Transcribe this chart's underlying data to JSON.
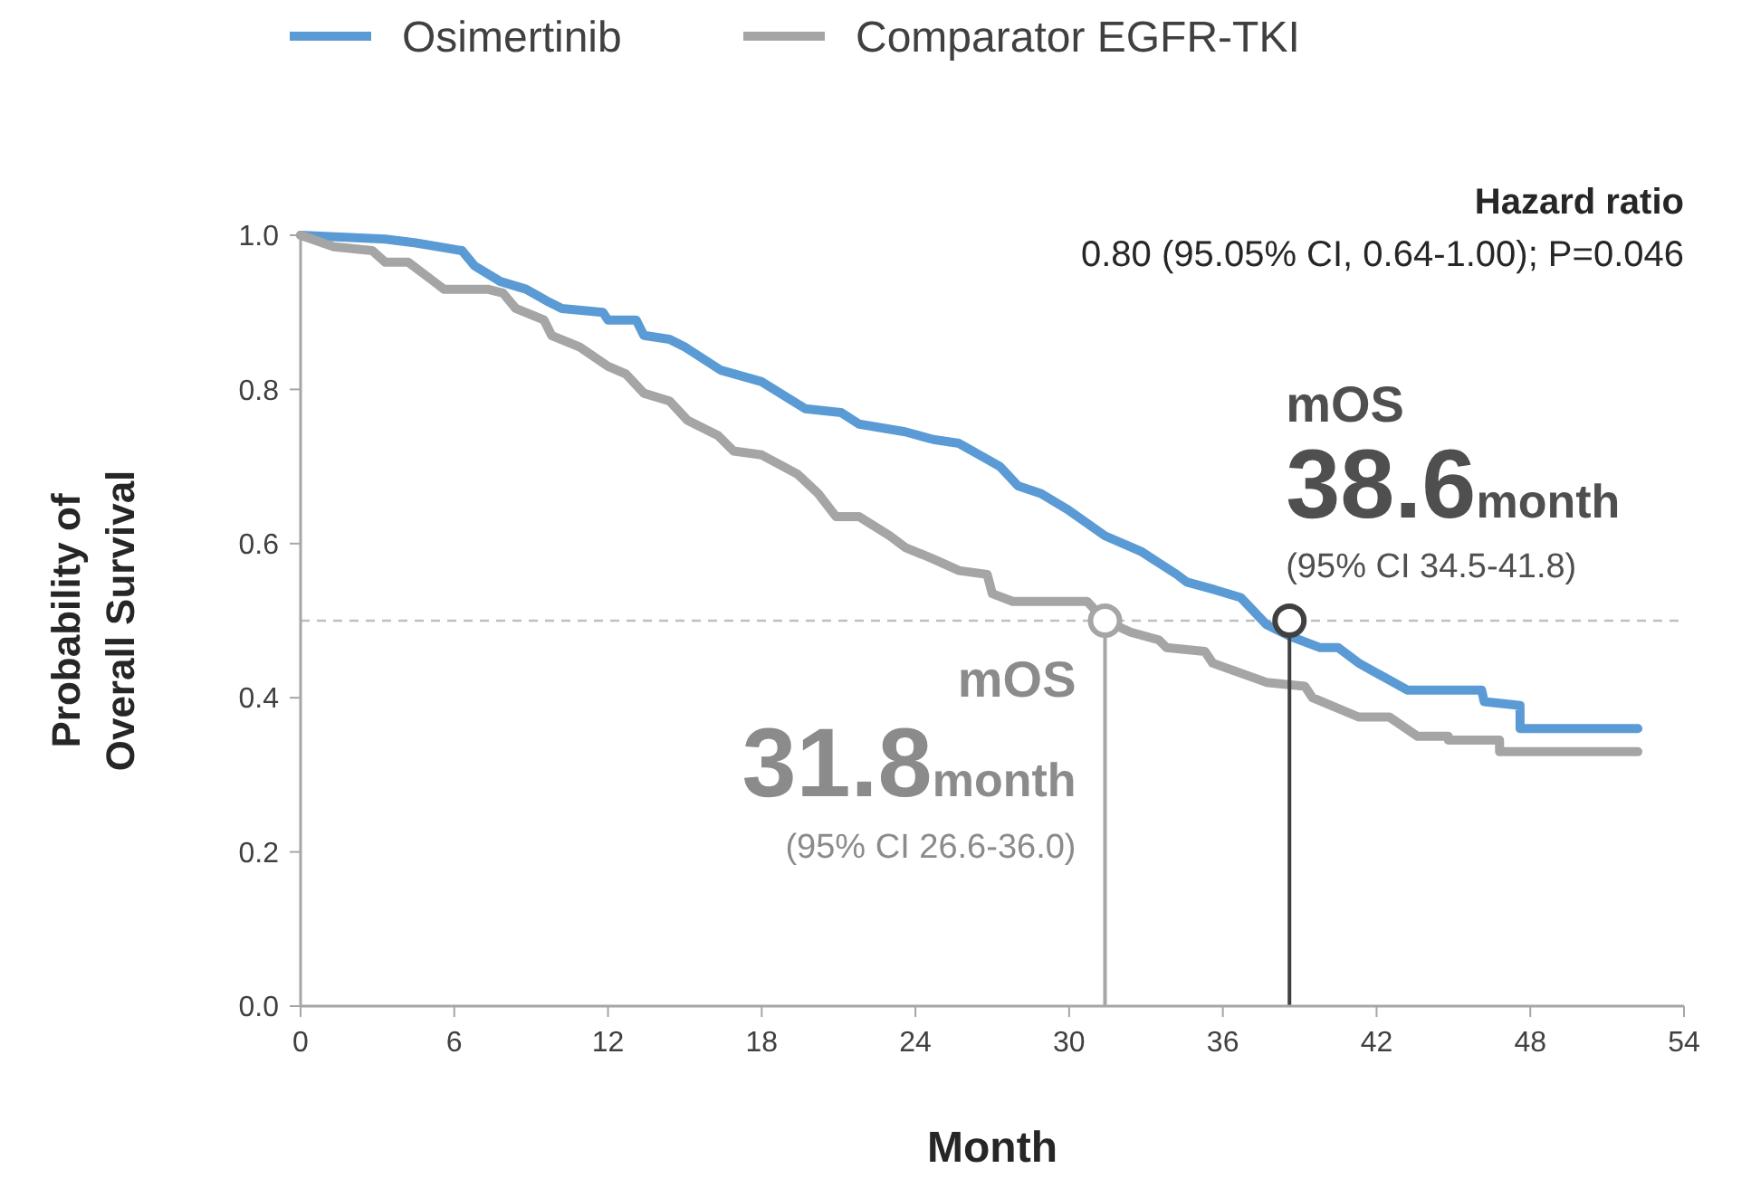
{
  "chart_data": {
    "type": "line",
    "xlabel": "Month",
    "ylabel": "Probability of\nOverall Survival",
    "legend": "top left",
    "xlim": [
      0,
      54
    ],
    "xticks": [
      0,
      6,
      12,
      18,
      24,
      30,
      36,
      42,
      48,
      54
    ],
    "ylim": [
      0,
      1
    ],
    "yticks": [
      {
        "value": 0,
        "label": "0.0"
      },
      {
        "value": 0.2,
        "label": "0.2"
      },
      {
        "value": 0.4,
        "label": "0.4"
      },
      {
        "value": 0.6,
        "label": "0.6"
      },
      {
        "value": 0.8,
        "label": "0.8"
      },
      {
        "value": 1,
        "label": "1.0"
      }
    ],
    "grid": false,
    "marker": "none",
    "line_style": "solid",
    "series": [
      {
        "name": "Osimertinib",
        "color": "#5b9bd5",
        "x": [
          0,
          3.3,
          4.5,
          6.3,
          6.8,
          7.8,
          8.8,
          9.6,
          10.2,
          11.8,
          12,
          13.1,
          13.4,
          14.4,
          15,
          16.4,
          18,
          19.7,
          21.1,
          21.8,
          23.6,
          24.7,
          25.7,
          27.3,
          28,
          28.9,
          29.9,
          31.4,
          32.8,
          33.5,
          34.2,
          34.6,
          35.7,
          36.7,
          37.7,
          38.6,
          39.8,
          40.5,
          41.3,
          43.2,
          46.1,
          46.2,
          47.6,
          47.6,
          52.2
        ],
        "values": [
          1,
          0.995,
          0.99,
          0.98,
          0.96,
          0.94,
          0.93,
          0.915,
          0.905,
          0.9,
          0.89,
          0.89,
          0.87,
          0.865,
          0.855,
          0.825,
          0.81,
          0.775,
          0.77,
          0.755,
          0.745,
          0.735,
          0.73,
          0.7,
          0.675,
          0.665,
          0.645,
          0.61,
          0.59,
          0.575,
          0.56,
          0.55,
          0.54,
          0.53,
          0.495,
          0.48,
          0.465,
          0.465,
          0.445,
          0.41,
          0.41,
          0.395,
          0.39,
          0.36,
          0.36
        ]
      },
      {
        "name": "Comparator EGFR-TKI",
        "color": "#a5a5a5",
        "x": [
          0,
          1.3,
          2.8,
          3.3,
          4.2,
          5.2,
          5.6,
          7.3,
          7.9,
          8.4,
          9.5,
          9.8,
          10.9,
          12,
          12.7,
          13.4,
          14.4,
          15.1,
          16.3,
          16.9,
          18,
          19.4,
          20.2,
          20.9,
          21.8,
          23,
          23.6,
          24.7,
          25.7,
          26.8,
          27,
          27.8,
          30.7,
          31.4,
          32.4,
          33.5,
          33.8,
          35.3,
          35.6,
          37.7,
          39.2,
          39.5,
          41.3,
          42.5,
          43.6,
          44.8,
          44.8,
          46.8,
          46.8,
          52.2
        ],
        "values": [
          1,
          0.985,
          0.98,
          0.965,
          0.965,
          0.94,
          0.93,
          0.93,
          0.925,
          0.905,
          0.89,
          0.87,
          0.855,
          0.83,
          0.82,
          0.795,
          0.785,
          0.76,
          0.74,
          0.72,
          0.715,
          0.69,
          0.665,
          0.635,
          0.635,
          0.61,
          0.595,
          0.58,
          0.565,
          0.56,
          0.535,
          0.525,
          0.525,
          0.5,
          0.485,
          0.475,
          0.465,
          0.46,
          0.445,
          0.42,
          0.415,
          0.4,
          0.375,
          0.375,
          0.35,
          0.35,
          0.345,
          0.345,
          0.33,
          0.33
        ]
      },
      {
        "type": "lollipop",
        "color": "#404040",
        "marker": "circle",
        "x": [
          38.6
        ],
        "values": [
          0.5
        ]
      },
      {
        "type": "lollipop",
        "color": "#a6a6a6",
        "marker": "circle",
        "x": [
          31.4
        ],
        "values": [
          0.5
        ]
      }
    ],
    "ref_lines": [
      {
        "axis": "y",
        "value": 0.5,
        "color": "#bfbfbf",
        "line_style": "dashed"
      }
    ],
    "annotations": [
      "Hazard ratio",
      "0.80 (95.05% CI, 0.64-1.00); P=0.046",
      "mOS",
      "38.6month",
      "(95% CI 34.5-41.8)",
      "mOS",
      "31.8month",
      "(95% CI 26.6-36.0)"
    ]
  }
}
